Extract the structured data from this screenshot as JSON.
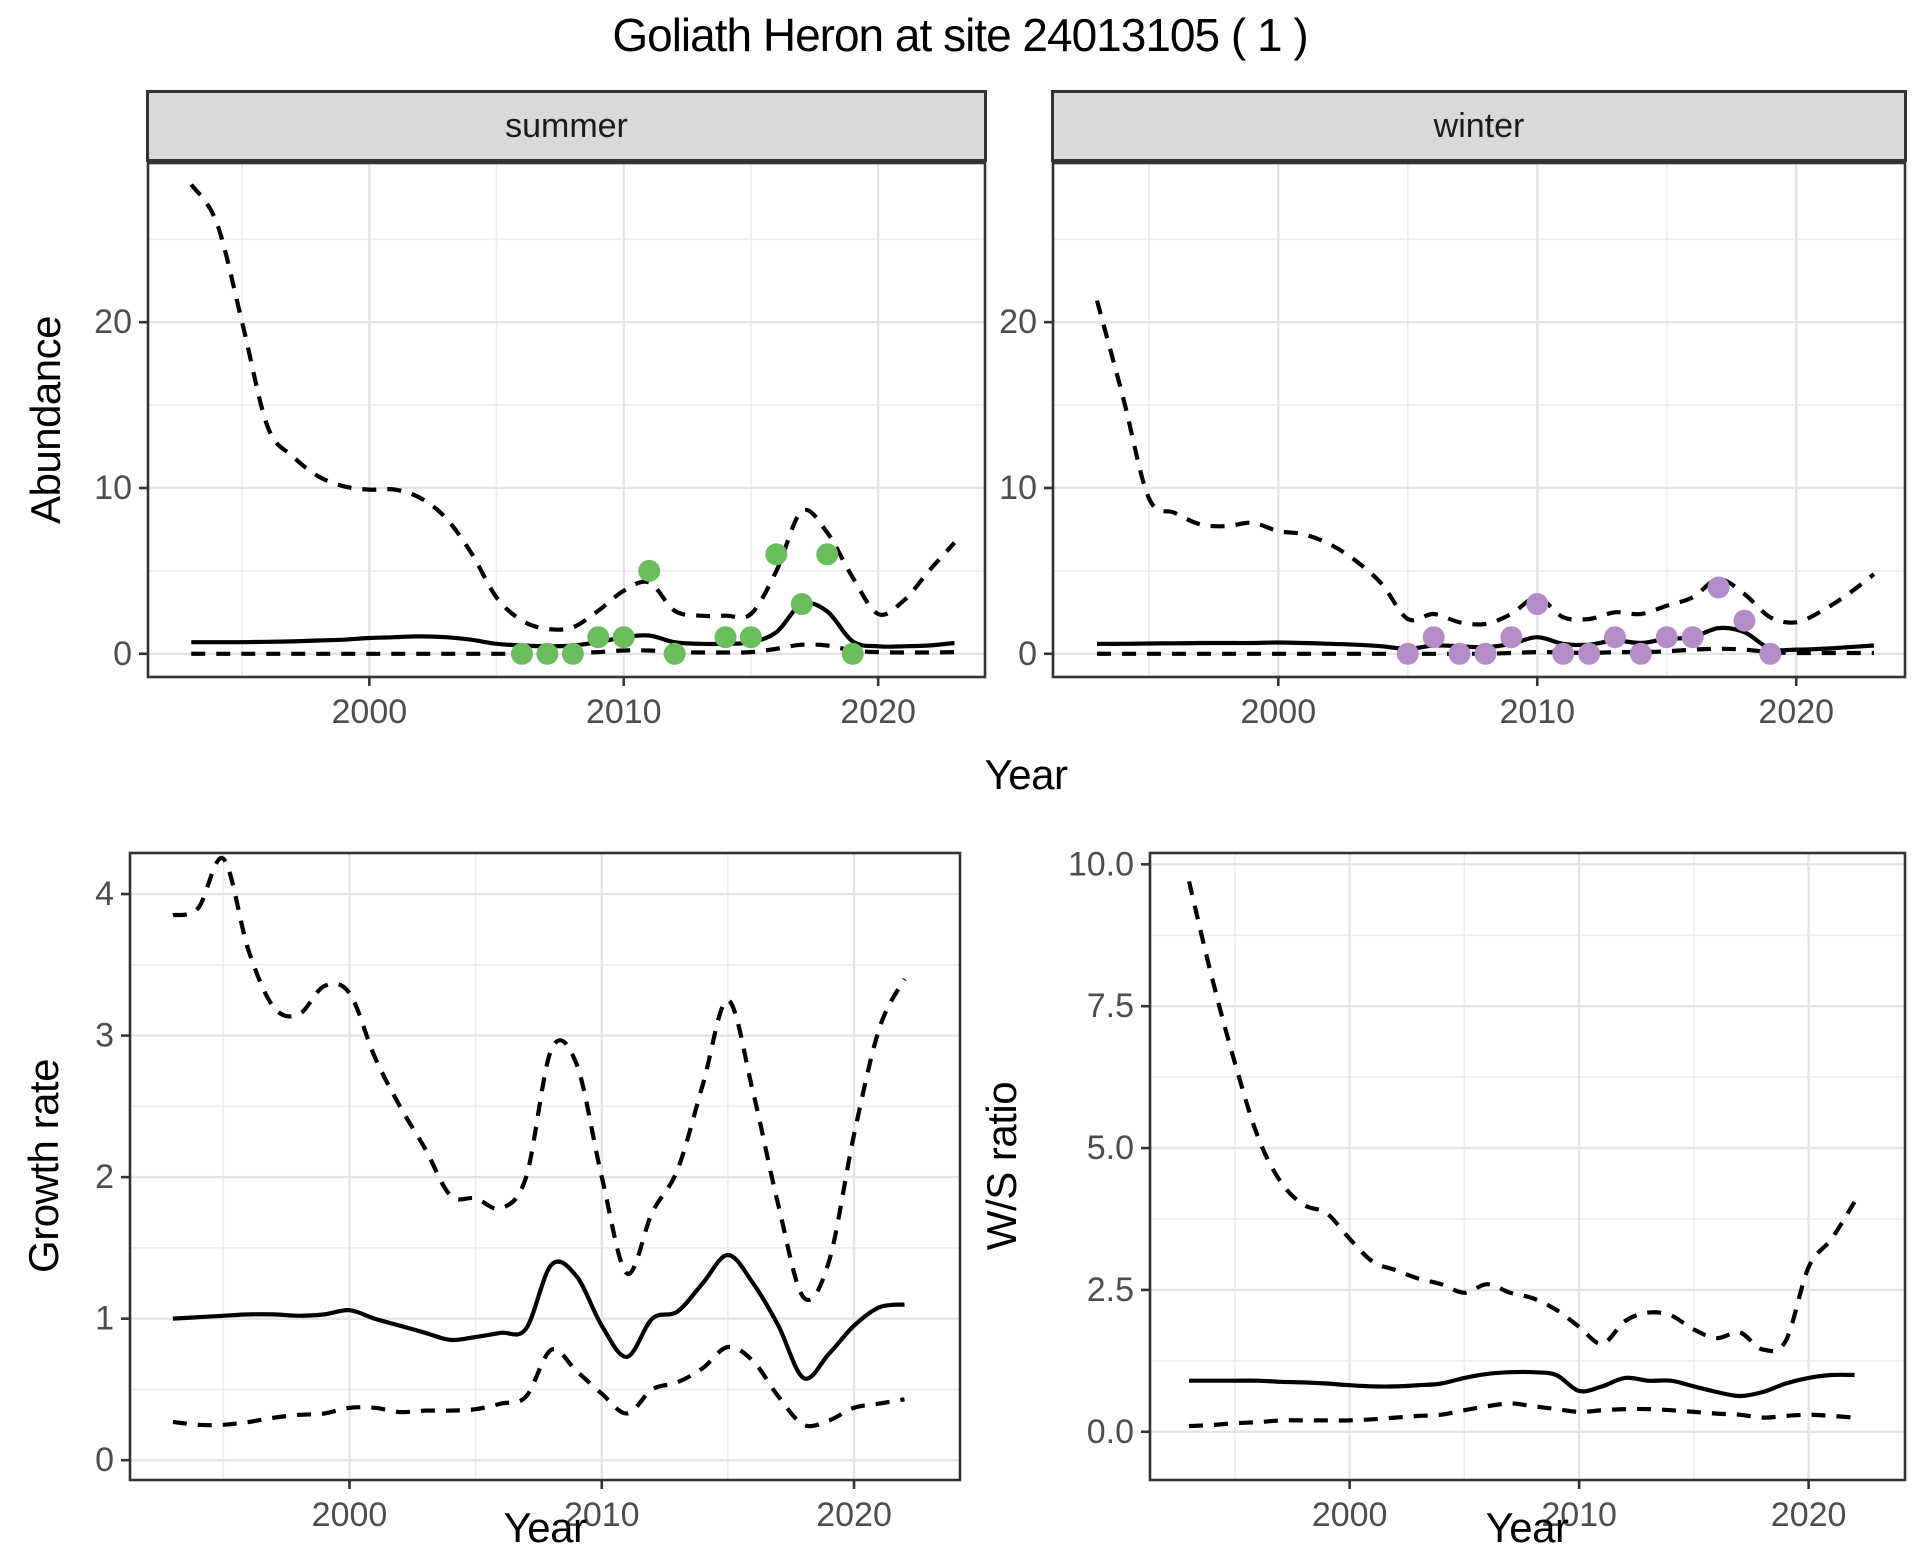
{
  "title": "Goliath Heron at site 24013105 ( 1 )",
  "colors": {
    "summer_point": "#6abc5d",
    "winter_point": "#b48cc8",
    "line": "#000000",
    "grid_major": "#e4e4e4",
    "grid_minor": "#ededed",
    "panel_border": "#333333",
    "tick_text": "#4d4d4d",
    "strip_bg": "#d9d9d9"
  },
  "chart_data": [
    {
      "type": "line",
      "panel": "summer",
      "facet_label": "summer",
      "xlabel": "Year",
      "ylabel": "Abundance",
      "xlim": [
        1991.3,
        2024.2
      ],
      "ylim": [
        -1.4,
        29.6
      ],
      "xticks": {
        "major": [
          2000,
          2010,
          2020
        ],
        "minor": [
          1995,
          2005,
          2015
        ],
        "labels": [
          "2000",
          "2010",
          "2020"
        ]
      },
      "yticks": {
        "major": [
          0,
          10,
          20
        ],
        "minor": [
          5,
          15,
          25
        ],
        "labels": [
          "0",
          "10",
          "20"
        ]
      },
      "x": [
        1993,
        1994,
        1995,
        1996,
        1997,
        1998,
        1999,
        2000,
        2001,
        2002,
        2003,
        2004,
        2005,
        2006,
        2007,
        2008,
        2009,
        2010,
        2011,
        2012,
        2013,
        2014,
        2015,
        2016,
        2017,
        2018,
        2019,
        2020,
        2021,
        2022,
        2023
      ],
      "series": [
        {
          "name": "upper_ci",
          "style": "dashed",
          "values": [
            28.3,
            26.0,
            20.0,
            13.7,
            11.9,
            10.7,
            10.1,
            9.9,
            9.9,
            9.4,
            8.2,
            6.1,
            3.4,
            2.0,
            1.5,
            1.6,
            2.6,
            3.8,
            4.3,
            2.6,
            2.3,
            2.3,
            2.4,
            5.0,
            8.6,
            7.3,
            4.6,
            2.4,
            3.2,
            5.0,
            6.7
          ]
        },
        {
          "name": "median",
          "style": "solid",
          "values": [
            0.7,
            0.7,
            0.7,
            0.72,
            0.75,
            0.8,
            0.85,
            0.95,
            1.0,
            1.05,
            1.0,
            0.85,
            0.6,
            0.5,
            0.45,
            0.5,
            0.7,
            1.0,
            1.1,
            0.7,
            0.6,
            0.6,
            0.7,
            1.3,
            3.0,
            2.55,
            0.75,
            0.45,
            0.45,
            0.5,
            0.65
          ]
        },
        {
          "name": "lower_ci",
          "style": "dashed",
          "values": [
            0,
            0,
            0,
            0,
            0,
            0,
            0,
            0,
            0,
            0,
            0,
            0,
            0,
            0,
            0,
            0.05,
            0.1,
            0.2,
            0.2,
            0.1,
            0.08,
            0.08,
            0.1,
            0.3,
            0.55,
            0.5,
            0.2,
            0.1,
            0.08,
            0.08,
            0.1
          ]
        }
      ],
      "points": {
        "color": "#6abc5d",
        "x": [
          2006,
          2007,
          2008,
          2009,
          2010,
          2011,
          2012,
          2014,
          2015,
          2016,
          2017,
          2018,
          2019
        ],
        "y": [
          0,
          0,
          0,
          1,
          1,
          5,
          0,
          1,
          1,
          6,
          3,
          6,
          0
        ]
      }
    },
    {
      "type": "line",
      "panel": "winter",
      "facet_label": "winter",
      "xlabel": "Year",
      "ylabel": "Abundance",
      "xlim": [
        1991.3,
        2024.2
      ],
      "ylim": [
        -1.4,
        29.6
      ],
      "xticks": {
        "major": [
          2000,
          2010,
          2020
        ],
        "minor": [
          1995,
          2005,
          2015
        ],
        "labels": [
          "2000",
          "2010",
          "2020"
        ]
      },
      "yticks": {
        "major": [
          0,
          10,
          20
        ],
        "minor": [
          5,
          15,
          25
        ],
        "labels": [
          "0",
          "10",
          "20"
        ]
      },
      "x": [
        1993,
        1994,
        1995,
        1996,
        1997,
        1998,
        1999,
        2000,
        2001,
        2002,
        2003,
        2004,
        2005,
        2006,
        2007,
        2008,
        2009,
        2010,
        2011,
        2012,
        2013,
        2014,
        2015,
        2016,
        2017,
        2018,
        2019,
        2020,
        2021,
        2022,
        2023
      ],
      "series": [
        {
          "name": "upper_ci",
          "style": "dashed",
          "values": [
            21.3,
            15.5,
            9.4,
            8.5,
            7.8,
            7.7,
            7.9,
            7.4,
            7.2,
            6.6,
            5.6,
            4.2,
            2.1,
            2.4,
            1.9,
            1.8,
            2.4,
            3.4,
            2.2,
            2.1,
            2.5,
            2.4,
            2.9,
            3.4,
            4.5,
            3.6,
            2.2,
            1.9,
            2.6,
            3.6,
            4.8
          ]
        },
        {
          "name": "median",
          "style": "solid",
          "values": [
            0.6,
            0.6,
            0.62,
            0.63,
            0.65,
            0.65,
            0.65,
            0.68,
            0.65,
            0.6,
            0.55,
            0.45,
            0.3,
            0.5,
            0.45,
            0.4,
            0.6,
            1.0,
            0.6,
            0.55,
            0.8,
            0.65,
            0.9,
            1.0,
            1.55,
            1.3,
            0.3,
            0.25,
            0.3,
            0.4,
            0.5
          ]
        },
        {
          "name": "lower_ci",
          "style": "dashed",
          "values": [
            0,
            0,
            0,
            0,
            0,
            0,
            0,
            0,
            0,
            0,
            0,
            0,
            0,
            0,
            0,
            0,
            0.05,
            0.1,
            0.08,
            0.05,
            0.1,
            0.1,
            0.15,
            0.25,
            0.3,
            0.25,
            0.1,
            0.05,
            0.05,
            0.05,
            0.05
          ]
        }
      ],
      "points": {
        "color": "#b48cc8",
        "x": [
          2005,
          2006,
          2007,
          2008,
          2009,
          2010,
          2011,
          2012,
          2013,
          2014,
          2015,
          2016,
          2017,
          2018,
          2019
        ],
        "y": [
          0,
          1,
          0,
          0,
          1,
          3,
          0,
          0,
          1,
          0,
          1,
          1,
          4,
          2,
          0
        ]
      }
    },
    {
      "type": "line",
      "panel": "growth",
      "facet_label": "",
      "xlabel": "Year",
      "ylabel": "Growth rate",
      "xlim": [
        1991.3,
        2024.2
      ],
      "ylim": [
        -0.14,
        4.29
      ],
      "xticks": {
        "major": [
          2000,
          2010,
          2020
        ],
        "minor": [
          1995,
          2005,
          2015
        ],
        "labels": [
          "2000",
          "2010",
          "2020"
        ]
      },
      "yticks": {
        "major": [
          0,
          1,
          2,
          3,
          4
        ],
        "minor": [
          0.5,
          1.5,
          2.5,
          3.5
        ],
        "labels": [
          "0",
          "1",
          "2",
          "3",
          "4"
        ]
      },
      "x": [
        1993,
        1994,
        1995,
        1996,
        1997,
        1998,
        1999,
        2000,
        2001,
        2002,
        2003,
        2004,
        2005,
        2006,
        2007,
        2008,
        2009,
        2010,
        2011,
        2012,
        2013,
        2014,
        2015,
        2016,
        2017,
        2018,
        2019,
        2020,
        2021,
        2022
      ],
      "series": [
        {
          "name": "upper_ci",
          "style": "dashed",
          "values": [
            3.85,
            3.9,
            4.25,
            3.6,
            3.2,
            3.15,
            3.35,
            3.3,
            2.85,
            2.5,
            2.2,
            1.87,
            1.85,
            1.78,
            2.0,
            2.9,
            2.8,
            2.0,
            1.32,
            1.75,
            2.05,
            2.65,
            3.25,
            2.6,
            1.8,
            1.15,
            1.4,
            2.3,
            3.05,
            3.4
          ]
        },
        {
          "name": "median",
          "style": "solid",
          "values": [
            1.0,
            1.01,
            1.02,
            1.03,
            1.03,
            1.02,
            1.03,
            1.06,
            1.0,
            0.95,
            0.9,
            0.85,
            0.87,
            0.9,
            0.93,
            1.38,
            1.3,
            0.95,
            0.73,
            1.0,
            1.05,
            1.25,
            1.45,
            1.25,
            0.95,
            0.58,
            0.75,
            0.95,
            1.08,
            1.1
          ]
        },
        {
          "name": "lower_ci",
          "style": "dashed",
          "values": [
            0.27,
            0.25,
            0.25,
            0.27,
            0.3,
            0.32,
            0.33,
            0.37,
            0.37,
            0.34,
            0.35,
            0.35,
            0.36,
            0.4,
            0.45,
            0.78,
            0.63,
            0.47,
            0.33,
            0.5,
            0.55,
            0.65,
            0.8,
            0.7,
            0.45,
            0.25,
            0.28,
            0.37,
            0.4,
            0.43
          ]
        }
      ],
      "points": null
    },
    {
      "type": "line",
      "panel": "ws",
      "facet_label": "",
      "xlabel": "Year",
      "ylabel": "W/S ratio",
      "xlim": [
        1991.3,
        2024.2
      ],
      "ylim": [
        -0.85,
        10.2
      ],
      "xticks": {
        "major": [
          2000,
          2010,
          2020
        ],
        "minor": [
          1995,
          2005,
          2015
        ],
        "labels": [
          "2000",
          "2010",
          "2020"
        ]
      },
      "yticks": {
        "major": [
          0,
          2.5,
          5,
          7.5,
          10
        ],
        "minor": [
          1.25,
          3.75,
          6.25,
          8.75
        ],
        "labels": [
          "0.0",
          "2.5",
          "5.0",
          "7.5",
          "10.0"
        ]
      },
      "x": [
        1993,
        1994,
        1995,
        1996,
        1997,
        1998,
        1999,
        2000,
        2001,
        2002,
        2003,
        2004,
        2005,
        2006,
        2007,
        2008,
        2009,
        2010,
        2011,
        2012,
        2013,
        2014,
        2015,
        2016,
        2017,
        2018,
        2019,
        2020,
        2021,
        2022
      ],
      "series": [
        {
          "name": "upper_ci",
          "style": "dashed",
          "values": [
            9.7,
            8.0,
            6.5,
            5.2,
            4.4,
            4.0,
            3.85,
            3.4,
            3.0,
            2.85,
            2.7,
            2.6,
            2.45,
            2.6,
            2.45,
            2.35,
            2.15,
            1.85,
            1.55,
            1.95,
            2.1,
            2.05,
            1.8,
            1.65,
            1.75,
            1.45,
            1.6,
            2.9,
            3.4,
            4.05
          ]
        },
        {
          "name": "median",
          "style": "solid",
          "values": [
            0.9,
            0.9,
            0.9,
            0.9,
            0.88,
            0.87,
            0.85,
            0.82,
            0.8,
            0.8,
            0.82,
            0.85,
            0.95,
            1.02,
            1.05,
            1.05,
            1.0,
            0.72,
            0.8,
            0.95,
            0.9,
            0.9,
            0.8,
            0.7,
            0.63,
            0.7,
            0.85,
            0.95,
            1.0,
            1.0
          ]
        },
        {
          "name": "lower_ci",
          "style": "dashed",
          "values": [
            0.1,
            0.12,
            0.15,
            0.17,
            0.2,
            0.2,
            0.2,
            0.2,
            0.22,
            0.25,
            0.28,
            0.3,
            0.38,
            0.45,
            0.5,
            0.45,
            0.4,
            0.35,
            0.38,
            0.4,
            0.4,
            0.38,
            0.35,
            0.32,
            0.3,
            0.25,
            0.28,
            0.3,
            0.28,
            0.25
          ]
        }
      ],
      "points": null
    }
  ]
}
